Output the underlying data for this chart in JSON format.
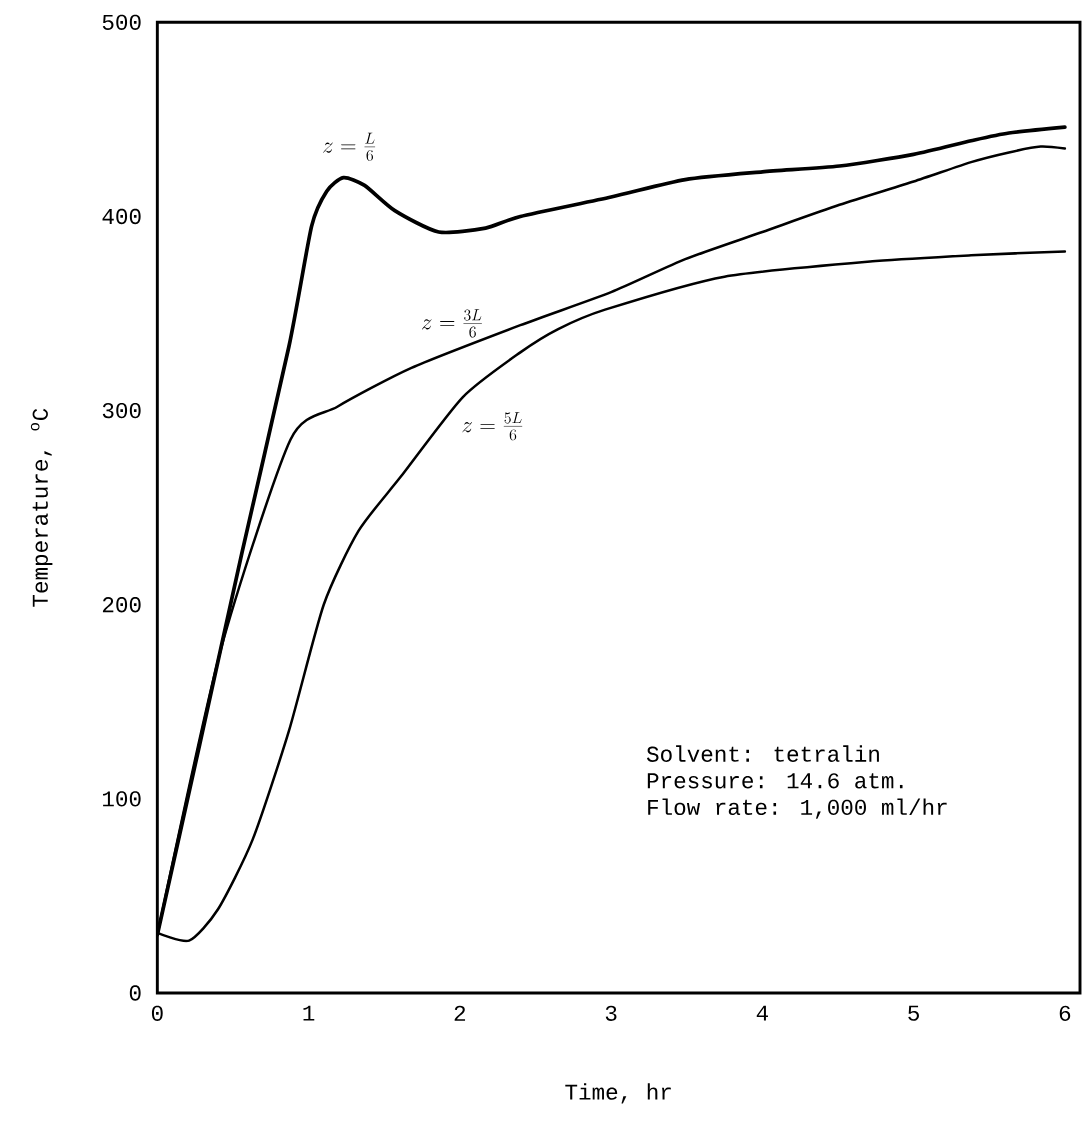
{
  "chart_data": {
    "type": "line",
    "xlabel": "Time, hr",
    "ylabel": "Temperature, $^{o}$C",
    "xlim": [
      0,
      6.1
    ],
    "ylim": [
      0,
      500
    ],
    "xticks": [
      0,
      1,
      2,
      3,
      4,
      5,
      6
    ],
    "yticks": [
      0,
      100,
      200,
      300,
      400,
      500
    ],
    "annotations": [
      "Solvent:  tetralin",
      "Pressure:  14.6 atm.",
      "Flow rate:  1,000 ml/hr"
    ],
    "series": [
      {
        "name": "z = \\frac{L}{6}",
        "color": "#000000",
        "x": [
          0,
          0.28,
          0.56,
          0.87,
          1.02,
          1.12,
          1.23,
          1.37,
          1.57,
          1.86,
          2.17,
          2.4,
          3.0,
          3.49,
          4.0,
          4.51,
          5.0,
          5.38,
          5.63,
          6.0
        ],
        "values": [
          30,
          128,
          227,
          333,
          395,
          413,
          420,
          416,
          403,
          392,
          394,
          400,
          410,
          419,
          423,
          426,
          432,
          439,
          443,
          446
        ]
      },
      {
        "name": "z = \\frac{3L}{6}",
        "color": "#000000",
        "x": [
          0,
          0.42,
          0.88,
          1.19,
          1.68,
          2.4,
          3.0,
          3.49,
          4.0,
          4.51,
          5.0,
          5.38,
          5.63,
          5.84,
          6.0
        ],
        "values": [
          30,
          177,
          285,
          302,
          322,
          344,
          361,
          378,
          392,
          406,
          418,
          428,
          433,
          436,
          435
        ]
      },
      {
        "name": "z = \\frac{5L}{6}",
        "color": "#000000",
        "x": [
          0,
          0.21,
          0.4,
          0.63,
          0.87,
          1.1,
          1.33,
          1.61,
          2.02,
          2.4,
          2.65,
          2.96,
          3.75,
          4.75,
          5.38,
          6.0
        ],
        "values": [
          31,
          27,
          43,
          79,
          135,
          200,
          238,
          266,
          307,
          330,
          342,
          352,
          369,
          377,
          380,
          382
        ]
      }
    ]
  }
}
